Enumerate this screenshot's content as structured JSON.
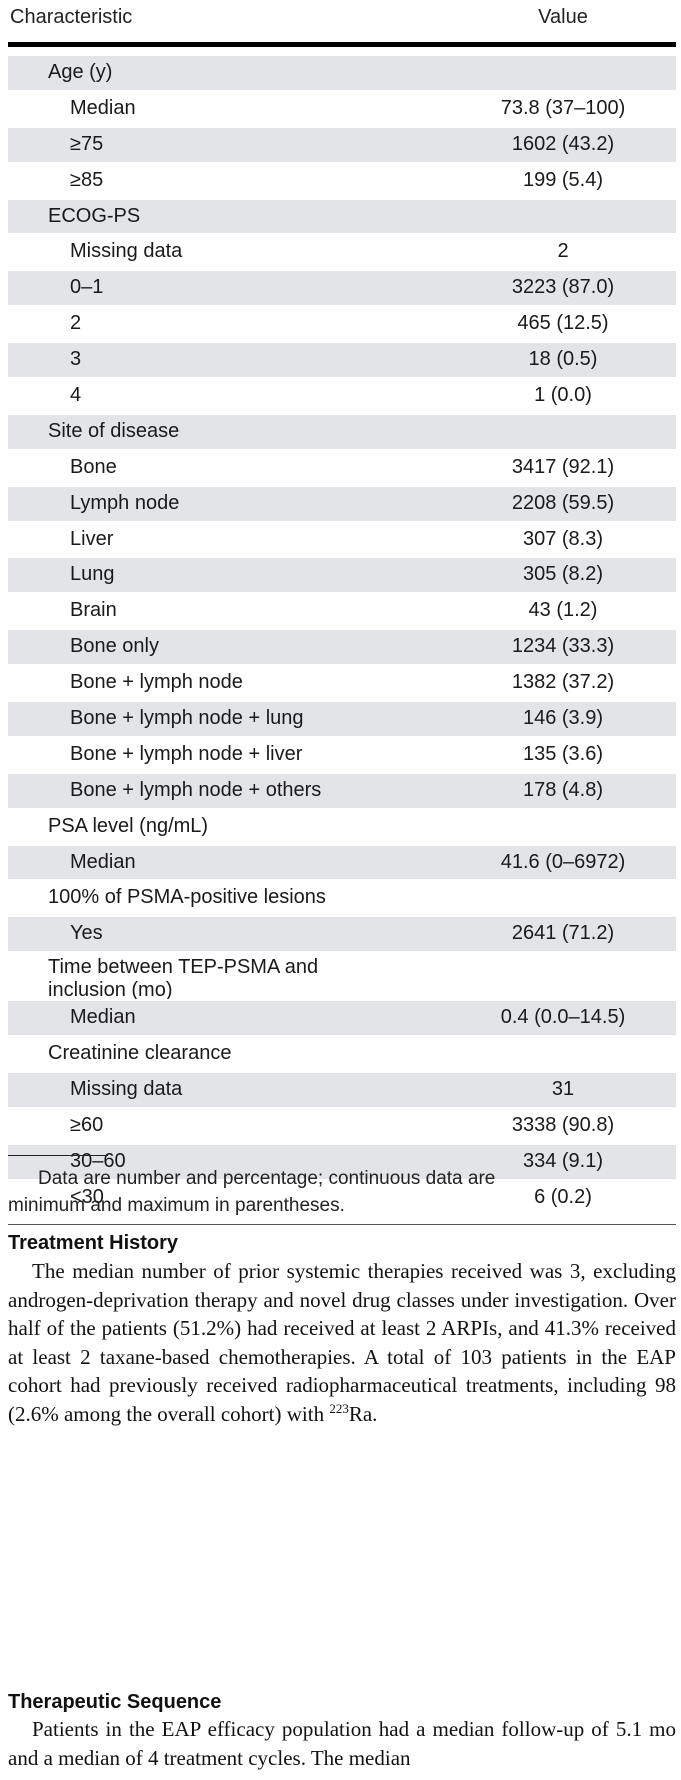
{
  "table": {
    "header": {
      "characteristic": "Characteristic",
      "value": "Value"
    },
    "rows": [
      {
        "label": "Age (y)",
        "value": "",
        "indent": 0,
        "shade": true
      },
      {
        "label": "Median",
        "value": "73.8 (37–100)",
        "indent": 1,
        "shade": false
      },
      {
        "label": "≥75",
        "value": "1602 (43.2)",
        "indent": 1,
        "shade": true
      },
      {
        "label": "≥85",
        "value": "199 (5.4)",
        "indent": 1,
        "shade": false
      },
      {
        "label": "ECOG-PS",
        "value": "",
        "indent": 0,
        "shade": true
      },
      {
        "label": "Missing data",
        "value": "2",
        "indent": 1,
        "shade": false
      },
      {
        "label": "0–1",
        "value": "3223 (87.0)",
        "indent": 1,
        "shade": true
      },
      {
        "label": "2",
        "value": "465 (12.5)",
        "indent": 1,
        "shade": false
      },
      {
        "label": "3",
        "value": "18 (0.5)",
        "indent": 1,
        "shade": true
      },
      {
        "label": "4",
        "value": "1 (0.0)",
        "indent": 1,
        "shade": false
      },
      {
        "label": "Site of disease",
        "value": "",
        "indent": 0,
        "shade": true
      },
      {
        "label": "Bone",
        "value": "3417 (92.1)",
        "indent": 1,
        "shade": false
      },
      {
        "label": "Lymph node",
        "value": "2208 (59.5)",
        "indent": 1,
        "shade": true
      },
      {
        "label": "Liver",
        "value": "307 (8.3)",
        "indent": 1,
        "shade": false
      },
      {
        "label": "Lung",
        "value": "305 (8.2)",
        "indent": 1,
        "shade": true
      },
      {
        "label": "Brain",
        "value": "43 (1.2)",
        "indent": 1,
        "shade": false
      },
      {
        "label": "Bone only",
        "value": "1234 (33.3)",
        "indent": 1,
        "shade": true
      },
      {
        "label": "Bone + lymph node",
        "value": "1382 (37.2)",
        "indent": 1,
        "shade": false
      },
      {
        "label": "Bone + lymph node + lung",
        "value": "146 (3.9)",
        "indent": 1,
        "shade": true
      },
      {
        "label": "Bone + lymph node + liver",
        "value": "135 (3.6)",
        "indent": 1,
        "shade": false
      },
      {
        "label": "Bone + lymph node + others",
        "value": "178 (4.8)",
        "indent": 1,
        "shade": true
      },
      {
        "label": "PSA level (ng/mL)",
        "value": "",
        "indent": 0,
        "shade": false
      },
      {
        "label": "Median",
        "value": "41.6 (0–6972)",
        "indent": 1,
        "shade": true
      },
      {
        "label": "100% of PSMA-positive lesions",
        "value": "",
        "indent": 0,
        "shade": false
      },
      {
        "label": "Yes",
        "value": "2641 (71.2)",
        "indent": 1,
        "shade": true
      },
      {
        "label": "Time between TEP-PSMA and     inclusion (mo)",
        "value": "",
        "indent": 0,
        "shade": false,
        "tall": true
      },
      {
        "label": "Median",
        "value": "0.4 (0.0–14.5)",
        "indent": 1,
        "shade": true
      },
      {
        "label": "Creatinine clearance",
        "value": "",
        "indent": 0,
        "shade": false
      },
      {
        "label": "Missing data",
        "value": "31",
        "indent": 1,
        "shade": true
      },
      {
        "label": "≥60",
        "value": "3338 (90.8)",
        "indent": 1,
        "shade": false
      },
      {
        "label": "30–60",
        "value": "334 (9.1)",
        "indent": 1,
        "shade": true
      },
      {
        "label": "<30",
        "value": "6 (0.2)",
        "indent": 1,
        "shade": false
      }
    ]
  },
  "footnote": {
    "line1": "Data are number and percentage; continuous data are",
    "line2": "minimum and maximum in parentheses."
  },
  "sections": [
    {
      "heading": "Treatment History",
      "text_before_sup": "The median number of prior systemic therapies received was 3, excluding androgen-deprivation therapy and novel drug classes under investigation. Over half of the patients (51.2%) had received at least 2 ARPIs, and 41.3% received at least 2 taxane-based chemotherapies. A total of 103 patients in the EAP cohort had previously received radiopharmaceutical treatments, including 98 (2.6% among the overall cohort) with ",
      "sup": "223",
      "text_after_sup": "Ra."
    },
    {
      "heading": "Therapeutic Sequence",
      "text": "Patients in the EAP efficacy population had a median follow-up of 5.1 mo and a median of 4 treatment cycles. The median"
    }
  ]
}
